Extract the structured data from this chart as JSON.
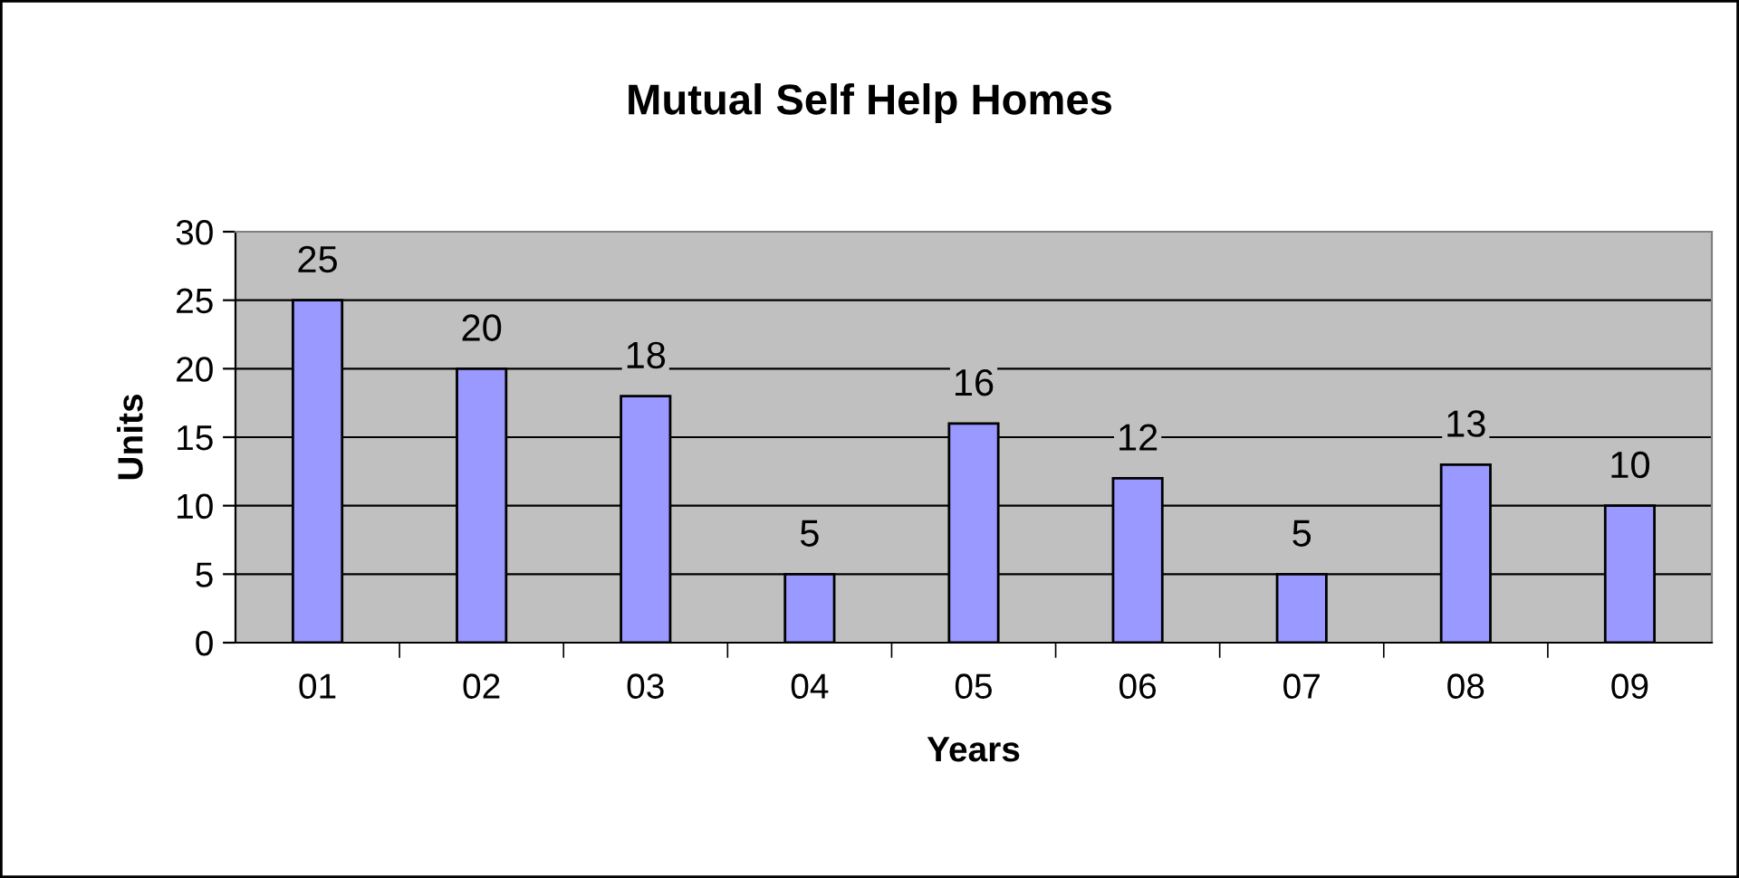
{
  "chart_data": {
    "type": "bar",
    "title": "Mutual Self Help Homes",
    "xlabel": "Years",
    "ylabel": "Units",
    "categories": [
      "01",
      "02",
      "03",
      "04",
      "05",
      "06",
      "07",
      "08",
      "09"
    ],
    "values": [
      25,
      20,
      18,
      5,
      16,
      12,
      5,
      13,
      10
    ],
    "color": "#9999ff",
    "ylim": [
      0,
      30
    ],
    "yticks": [
      0,
      5,
      10,
      15,
      20,
      25,
      30
    ],
    "grid": "y",
    "data_labels": true
  }
}
